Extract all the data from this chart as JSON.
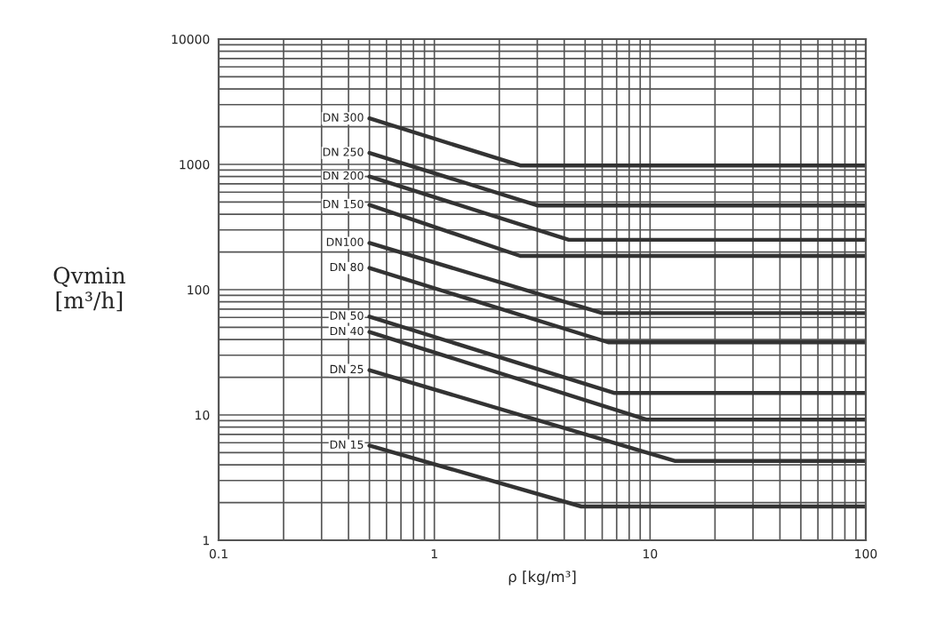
{
  "chart_data": {
    "type": "line",
    "xlabel": "ρ [kg/m³]",
    "ylabel": "Qvmin\n[m³/h]",
    "log": "xy",
    "grid": true,
    "xlim": [
      0.1,
      100
    ],
    "ylim": [
      1,
      10000
    ],
    "xticks": [
      0.1,
      1,
      10,
      100
    ],
    "yticks": [
      1,
      10,
      100,
      1000,
      10000
    ],
    "series": [
      {
        "name": "DN 300",
        "color": "#333333",
        "x": [
          0.5,
          2.5,
          100
        ],
        "values": [
          2330,
          980,
          980
        ]
      },
      {
        "name": "DN 250",
        "color": "#333333",
        "x": [
          0.5,
          3.0,
          100
        ],
        "values": [
          1235,
          470,
          470
        ]
      },
      {
        "name": "DN 200",
        "color": "#333333",
        "x": [
          0.5,
          4.2,
          100
        ],
        "values": [
          800,
          250,
          250
        ]
      },
      {
        "name": "DN 150",
        "color": "#333333",
        "x": [
          0.5,
          2.5,
          100
        ],
        "values": [
          474,
          186,
          186
        ]
      },
      {
        "name": "DN100",
        "color": "#333333",
        "x": [
          0.5,
          6.0,
          100
        ],
        "values": [
          236,
          65,
          65
        ]
      },
      {
        "name": "DN 80",
        "color": "#333333",
        "x": [
          0.5,
          6.4,
          100
        ],
        "values": [
          149,
          38,
          38
        ]
      },
      {
        "name": "DN 50",
        "color": "#333333",
        "x": [
          0.5,
          6.8,
          100
        ],
        "values": [
          61,
          15,
          15
        ]
      },
      {
        "name": "DN 40",
        "color": "#333333",
        "x": [
          0.5,
          9.6,
          100
        ],
        "values": [
          46,
          9.2,
          9.2
        ]
      },
      {
        "name": "DN 25",
        "color": "#333333",
        "x": [
          0.5,
          13,
          100
        ],
        "values": [
          22.8,
          4.3,
          4.3
        ]
      },
      {
        "name": "DN 15",
        "color": "#333333",
        "x": [
          0.5,
          4.8,
          100
        ],
        "values": [
          5.7,
          1.86,
          1.86
        ]
      }
    ]
  }
}
